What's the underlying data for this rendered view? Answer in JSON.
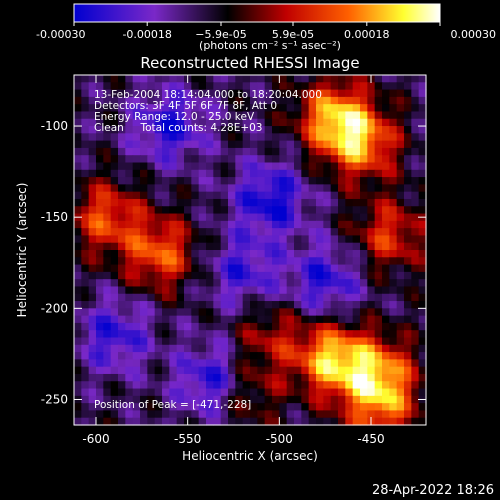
{
  "chart_data": {
    "type": "heatmap",
    "title": "Reconstructed RHESSI Image",
    "xlabel": "Heliocentric X (arcsec)",
    "ylabel": "Heliocentric Y (arcsec)",
    "xlim": [
      -612,
      -420
    ],
    "ylim": [
      -264,
      -72
    ],
    "x_ticks": [
      -600,
      -550,
      -500,
      -450
    ],
    "x_tick_labels": [
      "-600",
      "-550",
      "-500",
      "-450"
    ],
    "y_ticks": [
      -250,
      -200,
      -150,
      -100
    ],
    "y_tick_labels": [
      "-250",
      "-200",
      "-150",
      "-100"
    ],
    "colorbar": {
      "range": [
        -0.0003,
        0.0003
      ],
      "ticks": [
        -0.0003,
        -0.00018,
        -5.9e-05,
        5.9e-05,
        0.00018,
        0.0003
      ],
      "tick_labels": [
        "-0.00030",
        "-0.00018",
        "−5.9e-05",
        "5.9e-05",
        "0.00018",
        "0.00030"
      ],
      "units": "(photons cm⁻² s⁻¹ asec⁻²)",
      "colormap": [
        "#0000d0",
        "#7a28c8",
        "#000000",
        "#c00000",
        "#ff6000",
        "#ffff30",
        "#ffffff"
      ]
    },
    "annotations": [
      "13-Feb-2004 18:14:04.000 to 18:20:04.000",
      "Detectors: 3F 4F 5F 6F 7F 8F, Att 0",
      "Energy Range: 12.0 - 25.0 keV",
      "Clean     Total counts: 4.28E+03"
    ],
    "peak_label": "Position of Peak = [-471,-228]",
    "peak": [
      -471,
      -228
    ],
    "bright_regions": [
      {
        "x": -470,
        "y": -95,
        "value": 0.00027
      },
      {
        "x": -455,
        "y": -110,
        "value": 0.00024
      },
      {
        "x": -565,
        "y": -170,
        "value": 0.00022
      },
      {
        "x": -595,
        "y": -150,
        "value": 0.0002
      },
      {
        "x": -471,
        "y": -228,
        "value": 0.0003
      },
      {
        "x": -445,
        "y": -235,
        "value": 0.00022
      },
      {
        "x": -440,
        "y": -160,
        "value": 0.00018
      },
      {
        "x": -520,
        "y": -245,
        "value": 0.00015
      },
      {
        "x": -505,
        "y": -215,
        "value": 0.00012
      },
      {
        "x": -445,
        "y": -255,
        "value": 0.0002
      }
    ],
    "dark_regions": [
      {
        "x": -560,
        "y": -100,
        "value": -0.00018
      },
      {
        "x": -505,
        "y": -140,
        "value": -0.0002
      },
      {
        "x": -590,
        "y": -215,
        "value": -0.00016
      },
      {
        "x": -535,
        "y": -240,
        "value": -0.00022
      },
      {
        "x": -520,
        "y": -180,
        "value": -0.00015
      },
      {
        "x": -475,
        "y": -185,
        "value": -0.00017
      }
    ]
  },
  "footer": {
    "date": "28-Apr-2022 18:26"
  }
}
